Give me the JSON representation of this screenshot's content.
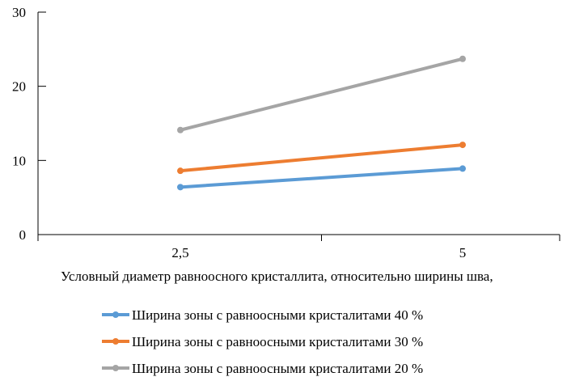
{
  "chart_data": {
    "type": "line",
    "title": "",
    "xlabel": "Условный диаметр равноосного кристаллита, относительно ширины шва,",
    "ylabel": "",
    "categories": [
      "2,5",
      "5"
    ],
    "ylim": [
      0,
      30
    ],
    "yticks": [
      0,
      10,
      20,
      30
    ],
    "grid": {
      "horizontal": true,
      "vertical": false
    },
    "legend_position": "bottom",
    "series": [
      {
        "name": "Ширина зоны с равноосными кристалитами 40 %",
        "values": [
          6.4,
          8.9
        ],
        "color": "#5b9bd5"
      },
      {
        "name": "Ширина зоны с равноосными кристалитами 30 %",
        "values": [
          8.6,
          12.1
        ],
        "color": "#ed7d31"
      },
      {
        "name": "Ширина зоны с равноосными кристалитами 20 %",
        "values": [
          14.1,
          23.7
        ],
        "color": "#a5a5a5"
      }
    ]
  }
}
